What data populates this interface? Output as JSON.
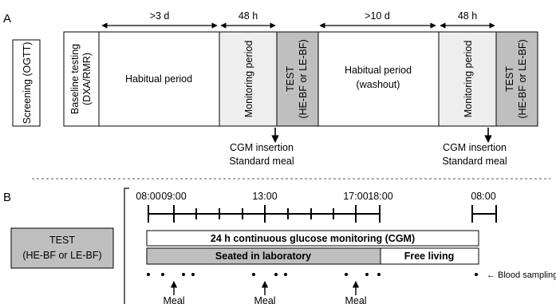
{
  "panel_a": {
    "label": "A",
    "screening": "Screening (OGTT)",
    "baseline": [
      "Baseline testing",
      "(DXA/RMR)"
    ],
    "habitual1": "Habitual period",
    "monitoring1": "Monitoring period",
    "test1": [
      "TEST",
      "(HE-BF or LE-BF)"
    ],
    "habitual2": [
      "Habitual period",
      "(washout)"
    ],
    "monitoring2": "Monitoring period",
    "test2": [
      "TEST",
      "(HE-BF or LE-BF)"
    ],
    "dur1": ">3 d",
    "dur2": "48 h",
    "dur3": ">10 d",
    "dur4": "48 h",
    "note1": [
      "CGM insertion",
      "Standard meal"
    ],
    "note2": [
      "CGM insertion",
      "Standard meal"
    ]
  },
  "panel_b": {
    "label": "B",
    "test": [
      "TEST",
      "(HE-BF or LE-BF)"
    ],
    "times": [
      "08:00",
      "09:00",
      "13:00",
      "17:00",
      "18:00",
      "08:00"
    ],
    "cgm": "24 h continuous glucose monitoring (CGM)",
    "seated": "Seated in laboratory",
    "free": "Free living",
    "blood": "Blood sampling",
    "meal": "Meal"
  },
  "colors": {
    "shade_light": "#eeeeee",
    "shade_dark": "#bfbfbf",
    "border": "#000000"
  }
}
